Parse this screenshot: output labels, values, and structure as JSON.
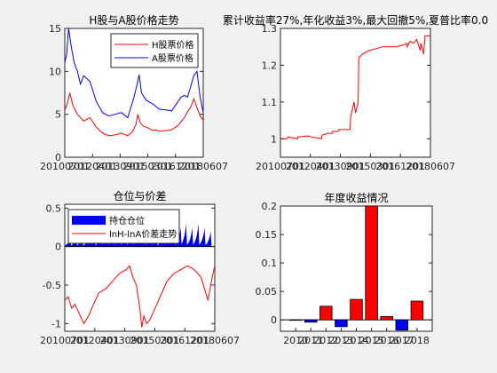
{
  "figure": {
    "background": "#f0f0f0",
    "colors": {
      "red": "#ff0000",
      "blue": "#0000ff",
      "axis": "#262626"
    }
  },
  "chart_data": [
    {
      "id": "prices",
      "type": "line",
      "title": "H股与A股价格走势",
      "xlabel": "",
      "ylabel": "",
      "xlim": [
        0,
        2200
      ],
      "ylim": [
        0,
        15
      ],
      "yticks": [
        0,
        5,
        10,
        15
      ],
      "xtick_labels": [
        "20100701",
        "20120401",
        "20130901",
        "20150301",
        "20161201",
        "20180607"
      ],
      "grid": false,
      "legend": "top-right",
      "series": [
        {
          "name": "H股票价格",
          "color": "#ff0000",
          "x": [
            0,
            40,
            80,
            130,
            200,
            300,
            400,
            500,
            600,
            700,
            800,
            900,
            1000,
            1080,
            1130,
            1160,
            1200,
            1250,
            1300,
            1350,
            1400,
            1450,
            1500,
            1600,
            1700,
            1800,
            1900,
            1950,
            2000,
            2050,
            2100,
            2150,
            2200
          ],
          "y": [
            5.5,
            6.2,
            7.5,
            6.0,
            5.0,
            4.2,
            4.6,
            3.5,
            2.8,
            2.5,
            2.6,
            2.8,
            2.5,
            3.0,
            3.8,
            5.0,
            4.0,
            3.6,
            3.5,
            3.3,
            3.1,
            3.2,
            3.0,
            3.1,
            3.2,
            3.7,
            4.6,
            5.3,
            5.8,
            6.8,
            5.8,
            4.8,
            4.3
          ]
        },
        {
          "name": "A股票价格",
          "color": "#0000ff",
          "x": [
            0,
            30,
            60,
            100,
            150,
            200,
            250,
            300,
            400,
            500,
            600,
            700,
            800,
            900,
            1000,
            1050,
            1100,
            1150,
            1180,
            1220,
            1260,
            1300,
            1400,
            1500,
            1600,
            1700,
            1800,
            1850,
            1900,
            1950,
            2000,
            2050,
            2100,
            2150,
            2200
          ],
          "y": [
            11.0,
            12.0,
            15.0,
            13.0,
            11.0,
            10.0,
            8.5,
            9.5,
            8.8,
            6.5,
            5.2,
            4.8,
            5.0,
            5.2,
            4.6,
            5.8,
            7.0,
            8.5,
            9.6,
            7.5,
            7.0,
            6.6,
            6.2,
            5.6,
            5.5,
            5.4,
            6.5,
            7.0,
            7.2,
            7.0,
            8.2,
            9.5,
            10.0,
            7.0,
            5.2
          ]
        }
      ]
    },
    {
      "id": "cumulative",
      "type": "line",
      "title": "累计收益率27%,年化收益3%,最大回撤5%,夏普比率0.0",
      "xlabel": "",
      "ylabel": "",
      "xlim": [
        0,
        2200
      ],
      "ylim": [
        0.95,
        1.3
      ],
      "yticks": [
        1.0,
        1.1,
        1.2,
        1.3
      ],
      "xtick_labels": [
        "20100701",
        "20120401",
        "20130901",
        "20150301",
        "20161201",
        "20180607"
      ],
      "grid": false,
      "series": [
        {
          "name": "",
          "color": "#ff0000",
          "x": [
            0,
            100,
            110,
            250,
            255,
            400,
            450,
            600,
            610,
            700,
            760,
            770,
            850,
            860,
            1020,
            1030,
            1080,
            1100,
            1140,
            1150,
            1200,
            1300,
            1400,
            1500,
            1600,
            1700,
            1800,
            1850,
            1860,
            1900,
            1950,
            2000,
            2050,
            2060,
            2100,
            2120,
            2200
          ],
          "y": [
            1.0,
            1.0,
            1.005,
            1.0,
            1.005,
            1.008,
            1.005,
            1.0,
            1.01,
            1.015,
            1.015,
            1.02,
            1.02,
            1.025,
            1.025,
            1.06,
            1.1,
            1.07,
            1.1,
            1.22,
            1.23,
            1.24,
            1.245,
            1.25,
            1.25,
            1.25,
            1.255,
            1.26,
            1.25,
            1.265,
            1.26,
            1.27,
            1.24,
            1.26,
            1.23,
            1.28,
            1.28
          ]
        }
      ]
    },
    {
      "id": "position",
      "type": "line",
      "title": "仓位与价差",
      "xlabel": "",
      "ylabel": "",
      "xlim": [
        0,
        2200
      ],
      "ylim": [
        -1.1,
        0.55
      ],
      "yticks": [
        -1,
        -0.5,
        0,
        0.5
      ],
      "xtick_labels": [
        "20100701",
        "20120401",
        "20130901",
        "20150301",
        "20161201",
        "20180607"
      ],
      "grid": false,
      "legend": "top-left",
      "series": [
        {
          "name": "持仓仓位",
          "color": "#0000ff",
          "style": "spikes",
          "x": [
            80,
            170,
            260,
            360,
            440,
            540,
            630,
            720,
            810,
            900,
            990,
            1080,
            1120,
            1170,
            1260,
            1350,
            1450,
            1530,
            1610,
            1700,
            1780,
            1870,
            1960,
            2050,
            2140
          ],
          "y": [
            0.1,
            0.12,
            0.15,
            0.2,
            0.25,
            0.28,
            0.3,
            0.3,
            0.3,
            0.28,
            0.25,
            0.3,
            0.3,
            0.25,
            0.3,
            0.3,
            0.25,
            0.2,
            0.25,
            0.25,
            0.3,
            0.25,
            0.3,
            0.25,
            0.2
          ]
        },
        {
          "name": "lnH-lnA价差走势",
          "color": "#ff0000",
          "x": [
            0,
            50,
            100,
            150,
            200,
            280,
            350,
            420,
            500,
            600,
            700,
            800,
            900,
            950,
            1000,
            1050,
            1100,
            1130,
            1160,
            1200,
            1250,
            1300,
            1400,
            1500,
            1600,
            1700,
            1800,
            1900,
            2000,
            2050,
            2100,
            2150,
            2200
          ],
          "y": [
            -0.7,
            -0.65,
            -0.8,
            -0.75,
            -0.85,
            -1.0,
            -0.9,
            -0.75,
            -0.6,
            -0.55,
            -0.45,
            -0.35,
            -0.3,
            -0.25,
            -0.4,
            -0.5,
            -0.8,
            -1.05,
            -0.9,
            -1.0,
            -0.95,
            -0.85,
            -0.65,
            -0.45,
            -0.35,
            -0.3,
            -0.25,
            -0.3,
            -0.4,
            -0.55,
            -0.7,
            -0.45,
            -0.25
          ]
        }
      ]
    },
    {
      "id": "annual",
      "type": "bar",
      "title": "年度收益情况",
      "xlabel": "",
      "ylabel": "",
      "ylim": [
        -0.02,
        0.2
      ],
      "yticks": [
        0,
        0.05,
        0.1,
        0.15,
        0.2
      ],
      "categories": [
        "2010",
        "2011",
        "2012",
        "2013",
        "2014",
        "2015",
        "2016",
        "2017",
        "2018"
      ],
      "values": [
        0.0,
        -0.004,
        0.024,
        -0.012,
        0.036,
        0.205,
        0.006,
        -0.018,
        0.033
      ],
      "positive_color": "#ff0000",
      "negative_color": "#0000ff",
      "grid": false
    }
  ]
}
